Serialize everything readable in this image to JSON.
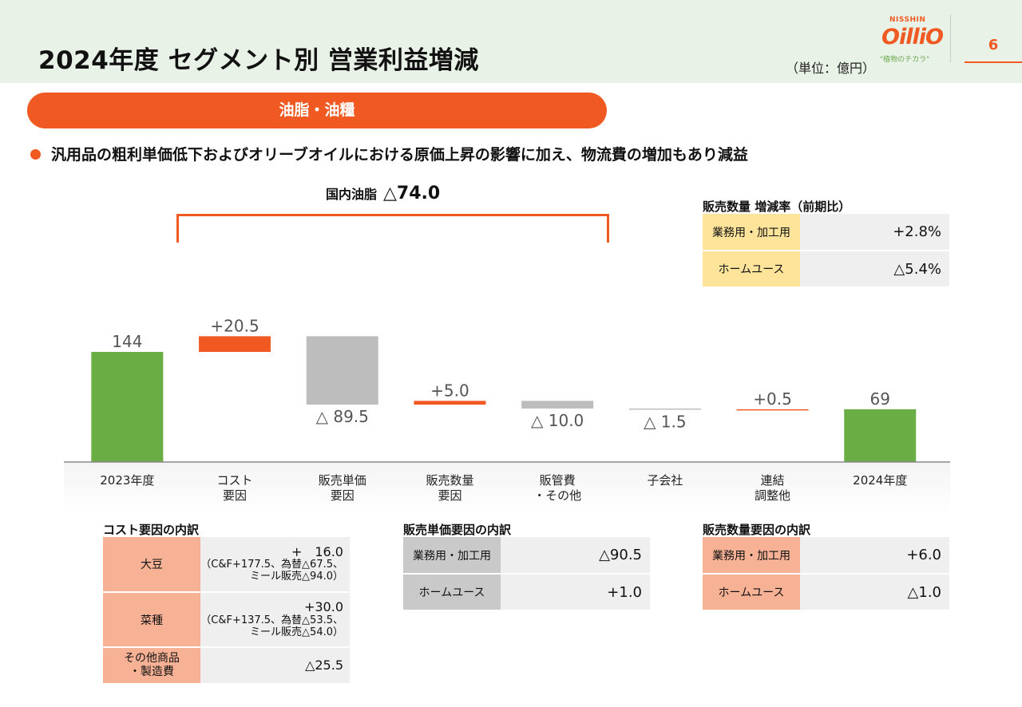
{
  "header": {
    "title": "2024年度 セグメント別 営業利益増減",
    "unit": "（単位：億円）",
    "logo": {
      "top": "NISSHIN",
      "brand": "OilliO",
      "slogan": "\"植物のチカラ\""
    },
    "page_number": "6"
  },
  "segment_label": "油脂・油糧",
  "bullet": "汎用品の粗利単価低下およびオリーブオイルにおける原価上昇の影響に加え、物流費の増加もあり減益",
  "domestic": {
    "label": "国内油脂",
    "value": "△74.0"
  },
  "sales_rate": {
    "title": "販売数量 増減率（前期比）",
    "rows": [
      {
        "label": "業務用・加工用",
        "value": "+2.8%"
      },
      {
        "label": "ホームユース",
        "value": "△5.4%"
      }
    ]
  },
  "chart_data": {
    "type": "bar",
    "subtype": "waterfall",
    "categories": [
      "2023年度",
      "コスト\n要因",
      "販売単価\n要因",
      "販売数量\n要因",
      "販管費\n・その他",
      "子会社",
      "連結\n調整他",
      "2024年度"
    ],
    "values": [
      144,
      20.5,
      -89.5,
      5.0,
      -10.0,
      -1.5,
      0.5,
      69
    ],
    "kinds": [
      "total",
      "delta",
      "delta",
      "delta",
      "delta",
      "delta",
      "delta",
      "total"
    ],
    "labels": [
      "144",
      "+20.5",
      "△ 89.5",
      "+5.0",
      "△ 10.0",
      "△ 1.5",
      "+0.5",
      "69"
    ],
    "colors": {
      "total": "#6aad45",
      "increase": "#f05a22",
      "decrease": "#bdbdbd"
    }
  },
  "cost_breakdown": {
    "title": "コスト要因の内訳",
    "rows": [
      {
        "label": "大豆",
        "value": "+　16.0",
        "note1": "（C&F+177.5、為替△67.5、",
        "note2": "ミール販売△94.0）"
      },
      {
        "label": "菜種",
        "value": "+30.0",
        "note1": "（C&F+137.5、為替△53.5、",
        "note2": "ミール販売△54.0）"
      },
      {
        "label1": "その他商品",
        "label2": "・製造費",
        "value": "△25.5"
      }
    ]
  },
  "price_breakdown": {
    "title": "販売単価要因の内訳",
    "rows": [
      {
        "label": "業務用・加工用",
        "value": "△90.5"
      },
      {
        "label": "ホームユース",
        "value": "+1.0"
      }
    ]
  },
  "volume_breakdown": {
    "title": "販売数量要因の内訳",
    "rows": [
      {
        "label": "業務用・加工用",
        "value": "+6.0"
      },
      {
        "label": "ホームユース",
        "value": "△1.0"
      }
    ]
  }
}
